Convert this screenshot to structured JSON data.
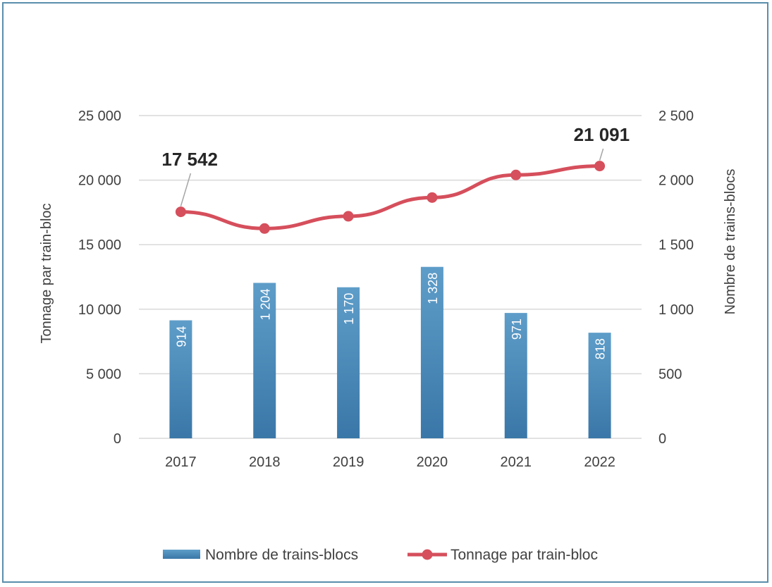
{
  "chart_data": {
    "type": "bar+line",
    "categories": [
      "2017",
      "2018",
      "2019",
      "2020",
      "2021",
      "2022"
    ],
    "series": [
      {
        "name": "Nombre de trains-blocs",
        "type": "bar",
        "axis": "right",
        "values": [
          914,
          1204,
          1170,
          1328,
          971,
          818
        ],
        "labels": [
          "914",
          "1 204",
          "1 170",
          "1 328",
          "971",
          "818"
        ]
      },
      {
        "name": "Tonnage par train-bloc",
        "type": "line",
        "axis": "left",
        "values": [
          17542,
          16250,
          17200,
          18650,
          20400,
          21091
        ]
      }
    ],
    "left_axis": {
      "title": "Tonnage par train-bloc",
      "range": [
        0,
        25000
      ],
      "ticks": [
        0,
        5000,
        10000,
        15000,
        20000,
        25000
      ],
      "tick_labels": [
        "0",
        "5 000",
        "10 000",
        "15 000",
        "20 000",
        "25 000"
      ]
    },
    "right_axis": {
      "title": "Nombre de trains-blocs",
      "range": [
        0,
        2500
      ],
      "ticks": [
        0,
        500,
        1000,
        1500,
        2000,
        2500
      ],
      "tick_labels": [
        "0",
        "500",
        "1 000",
        "1 500",
        "2 000",
        "2 500"
      ]
    },
    "annotations": [
      {
        "text": "17 542",
        "category": "2017"
      },
      {
        "text": "21 091",
        "category": "2022"
      }
    ],
    "grid": true,
    "legend": {
      "position": "bottom",
      "items": [
        "Nombre de trains-blocs",
        "Tonnage par train-bloc"
      ]
    },
    "colors": {
      "bar": "#3f7fb0",
      "bar_light": "#5b9ac6",
      "line": "#d64f5c",
      "frame": "#5a8eac"
    }
  }
}
